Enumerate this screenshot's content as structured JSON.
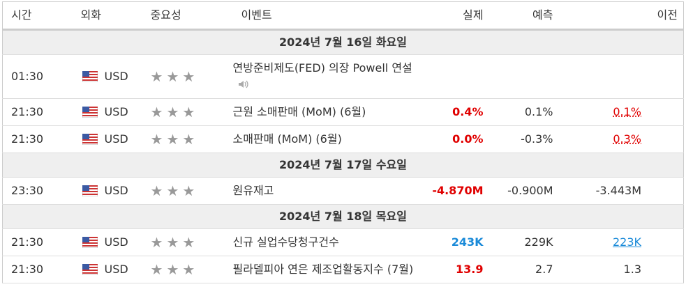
{
  "header": {
    "columns": [
      "시간",
      "외화",
      "중요성",
      "이벤트",
      "실제",
      "예측",
      "이전"
    ]
  },
  "groups": [
    {
      "date": "2024년 7월 16일 화요일",
      "events": [
        {
          "time": "01:30",
          "currency": "USD",
          "importance": 3,
          "event": "연방준비제도(FED) 의장 Powell 연설",
          "speech": true
        },
        {
          "time": "21:30",
          "currency": "USD",
          "importance": 3,
          "event": "근원 소매판매 (MoM) (6월)",
          "actual": "0.4%",
          "actual_color": "#e00000",
          "forecast": "0.1%",
          "previous": "0.1%",
          "previous_color": "#e00000",
          "previous_underline": "dotted"
        },
        {
          "time": "21:30",
          "currency": "USD",
          "importance": 3,
          "event": "소매판매 (MoM) (6월)",
          "actual": "0.0%",
          "actual_color": "#e00000",
          "forecast": "-0.3%",
          "previous": "0.3%",
          "previous_color": "#e00000",
          "previous_underline": "dotted"
        }
      ]
    },
    {
      "date": "2024년 7월 17일 수요일",
      "events": [
        {
          "time": "23:30",
          "currency": "USD",
          "importance": 3,
          "event": "원유재고",
          "actual": "-4.870M",
          "actual_color": "#e00000",
          "forecast": "-0.900M",
          "previous": "-3.443M"
        }
      ]
    },
    {
      "date": "2024년 7월 18일 목요일",
      "events": [
        {
          "time": "21:30",
          "currency": "USD",
          "importance": 3,
          "event": "신규 실업수당청구건수",
          "actual": "243K",
          "actual_color": "#1a8ad8",
          "forecast": "229K",
          "previous": "223K",
          "previous_color": "#1a8ad8",
          "previous_underline": "solid"
        },
        {
          "time": "21:30",
          "currency": "USD",
          "importance": 3,
          "event": "필라델피아 연은 제조업활동지수 (7월)",
          "actual": "13.9",
          "actual_color": "#e00000",
          "forecast": "2.7",
          "previous": "1.3"
        }
      ]
    }
  ]
}
